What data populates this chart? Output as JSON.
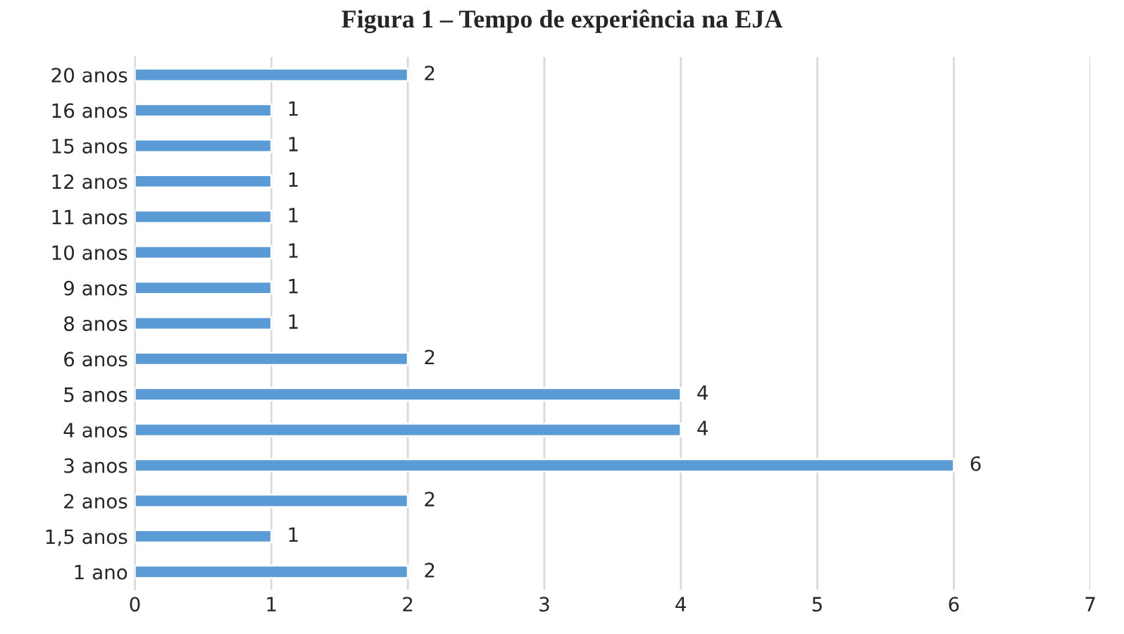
{
  "chart_data": {
    "type": "bar",
    "orientation": "horizontal",
    "title": "Figura 1 – Tempo de experiência na EJA",
    "categories": [
      "20 anos",
      "16 anos",
      "15 anos",
      "12 anos",
      "11 anos",
      "10 anos",
      "9 anos",
      "8 anos",
      "6 anos",
      "5 anos",
      "4 anos",
      "3 anos",
      "2 anos",
      "1,5 anos",
      "1 ano"
    ],
    "values": [
      2,
      1,
      1,
      1,
      1,
      1,
      1,
      1,
      2,
      4,
      4,
      6,
      2,
      1,
      2
    ],
    "color": "#5b9bd5",
    "xlim": [
      0,
      7
    ],
    "xticks": [
      0,
      1,
      2,
      3,
      4,
      5,
      6,
      7
    ],
    "grid": "x",
    "data_labels": true,
    "legend": false
  }
}
